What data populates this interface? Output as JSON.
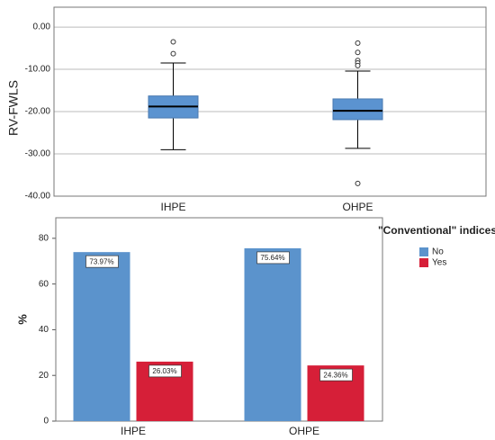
{
  "chart_data": [
    {
      "type": "box",
      "y_label": "RV-FWLS",
      "categories": [
        "IHPE",
        "OHPE"
      ],
      "color": "#5b93d0",
      "boxes": [
        {
          "whisker_low": -29,
          "q1": -21.5,
          "median": -18.8,
          "q3": -16.3,
          "whisker_high": -8.5,
          "outliers": [
            -3.5,
            -6.3
          ]
        },
        {
          "whisker_low": -28.7,
          "q1": -21.9,
          "median": -19.8,
          "q3": -17,
          "whisker_high": -10.4,
          "outliers": [
            -3.8,
            -6,
            -7.9,
            -8.5,
            -9.1,
            -37
          ]
        }
      ],
      "ylim": [
        -40,
        4.7
      ],
      "yticks": [
        {
          "value": -40,
          "label": "-40.00"
        },
        {
          "value": -30,
          "label": "-30.00"
        },
        {
          "value": -20,
          "label": "-20.00"
        },
        {
          "value": -10,
          "label": "-10.00"
        },
        {
          "value": 0,
          "label": "0.00"
        }
      ],
      "grid": true
    },
    {
      "type": "bar",
      "y_label": "%",
      "categories": [
        "IHPE",
        "OHPE"
      ],
      "legend_title": "\"Conventional\" indices",
      "legend": "right",
      "series": [
        {
          "name": "No",
          "color": "#5b93cc",
          "values": [
            73.97,
            75.64
          ],
          "value_labels": [
            "73.97%",
            "75.64%"
          ]
        },
        {
          "name": "Yes",
          "color": "#d61f38",
          "values": [
            26.03,
            24.36
          ],
          "value_labels": [
            "26.03%",
            "24.36%"
          ]
        }
      ],
      "ylim": [
        0,
        89
      ],
      "yticks": [
        0,
        20,
        40,
        60,
        80
      ],
      "grid": false
    }
  ]
}
